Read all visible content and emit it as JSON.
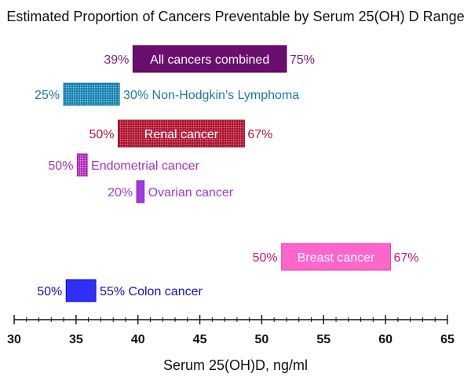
{
  "chart_data": {
    "type": "bar",
    "title": "Estimated Proportion of Cancers Preventable by Serum 25(OH) D Range",
    "xlabel": "Serum 25(OH)D, ng/ml",
    "xlim": [
      30,
      65
    ],
    "xticks": [
      "30",
      "35",
      "40",
      "45",
      "50",
      "55",
      "60",
      "65"
    ],
    "grid": false,
    "bars": [
      {
        "name": "All cancers combined",
        "x_start": 39.6,
        "x_end": 52.0,
        "low_pct": "39%",
        "high_pct": "75%",
        "label_inside": true,
        "color": "#6b0f6e",
        "pattern": "solid"
      },
      {
        "name": "Non-Hodgkin’s Lymphoma",
        "x_start": 34.0,
        "x_end": 38.5,
        "low_pct": "25%",
        "high_pct": "30%",
        "label_inside": false,
        "color": "#2b8db6",
        "pattern": "dots"
      },
      {
        "name": "Renal cancer",
        "x_start": 38.4,
        "x_end": 48.6,
        "low_pct": "50%",
        "high_pct": "67%",
        "label_inside": true,
        "color": "#b2243f",
        "pattern": "dots"
      },
      {
        "name": "Endometrial cancer",
        "x_start": 35.1,
        "x_end": 35.9,
        "low_pct": "50%",
        "high_pct": "",
        "label_inside": false,
        "color": "#b83fc6",
        "pattern": "dots"
      },
      {
        "name": "Ovarian cancer",
        "x_start": 39.9,
        "x_end": 40.5,
        "low_pct": "20%",
        "high_pct": "",
        "label_inside": false,
        "color": "#a23bdc",
        "pattern": "solid"
      },
      {
        "name": "Breast cancer",
        "x_start": 51.6,
        "x_end": 60.4,
        "low_pct": "50%",
        "high_pct": "67%",
        "label_inside": true,
        "color": "#ff66cc",
        "pattern": "solid"
      },
      {
        "name": "Colon cancer",
        "x_start": 34.2,
        "x_end": 36.6,
        "low_pct": "50%",
        "high_pct": "55%",
        "label_inside": false,
        "color": "#2f2ff5",
        "pattern": "solid"
      }
    ],
    "label_colors": {
      "All cancers combined": "#7b1f7e",
      "Non-Hodgkin’s Lymphoma": "#1b7aa6",
      "Renal cancer": "#b01a36",
      "Endometrial cancer": "#b02ec0",
      "Ovarian cancer": "#9b3ce0",
      "Breast cancer": "#d1147a",
      "Colon cancer": "#1010d0"
    }
  }
}
